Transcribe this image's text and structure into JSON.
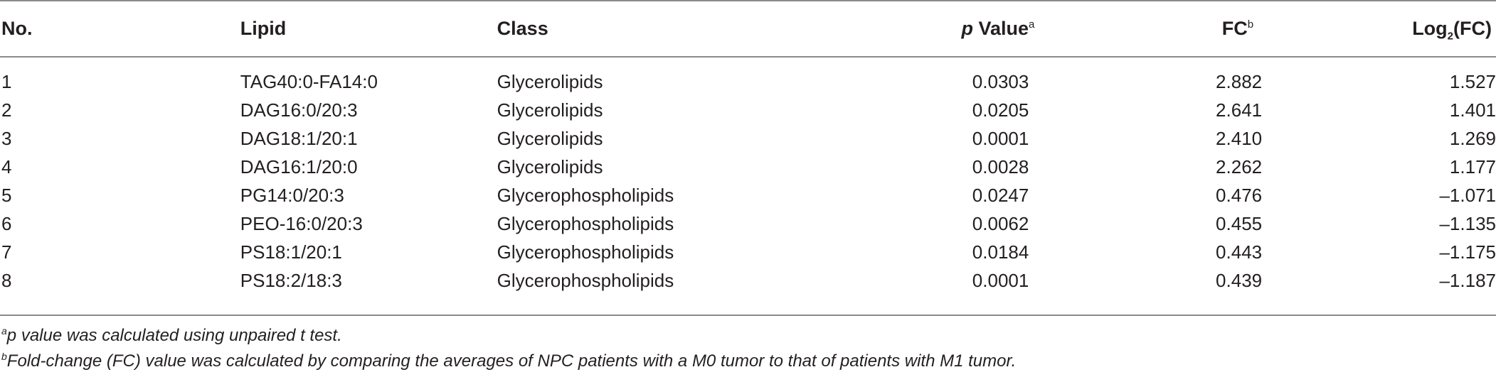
{
  "table": {
    "headers": {
      "no": "No.",
      "lipid": "Lipid",
      "class": "Class",
      "p_italic": "p",
      "p_rest": " Value",
      "p_mark": "a",
      "fc": "FC",
      "fc_mark": "b",
      "log_prefix": "Log",
      "log_sub": "2",
      "log_suffix": "(FC)"
    },
    "rows": [
      {
        "no": "1",
        "lipid": "TAG40:0-FA14:0",
        "class": "Glycerolipids",
        "p": "0.0303",
        "fc": "2.882",
        "log2fc": "1.527"
      },
      {
        "no": "2",
        "lipid": "DAG16:0/20:3",
        "class": "Glycerolipids",
        "p": "0.0205",
        "fc": "2.641",
        "log2fc": "1.401"
      },
      {
        "no": "3",
        "lipid": "DAG18:1/20:1",
        "class": "Glycerolipids",
        "p": "0.0001",
        "fc": "2.410",
        "log2fc": "1.269"
      },
      {
        "no": "4",
        "lipid": "DAG16:1/20:0",
        "class": "Glycerolipids",
        "p": "0.0028",
        "fc": "2.262",
        "log2fc": "1.177"
      },
      {
        "no": "5",
        "lipid": "PG14:0/20:3",
        "class": "Glycerophospholipids",
        "p": "0.0247",
        "fc": "0.476",
        "log2fc": "–1.071"
      },
      {
        "no": "6",
        "lipid": "PEO-16:0/20:3",
        "class": "Glycerophospholipids",
        "p": "0.0062",
        "fc": "0.455",
        "log2fc": "–1.135"
      },
      {
        "no": "7",
        "lipid": "PS18:1/20:1",
        "class": "Glycerophospholipids",
        "p": "0.0184",
        "fc": "0.443",
        "log2fc": "–1.175"
      },
      {
        "no": "8",
        "lipid": "PS18:2/18:3",
        "class": "Glycerophospholipids",
        "p": "0.0001",
        "fc": "0.439",
        "log2fc": "–1.187"
      }
    ]
  },
  "footnotes": [
    {
      "mark": "a",
      "text": "p value was calculated using unpaired t test."
    },
    {
      "mark": "b",
      "text": "Fold-change (FC) value was calculated by comparing the averages of NPC patients with a M0 tumor to that of patients with M1 tumor."
    }
  ]
}
